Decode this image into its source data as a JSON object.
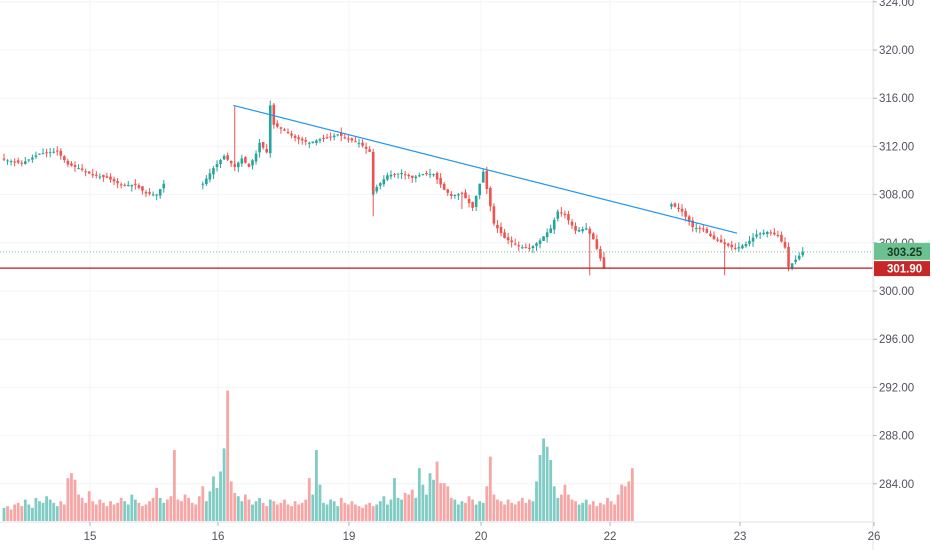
{
  "chart_data": {
    "type": "candlestick",
    "title": "",
    "x_ticks": [
      "15",
      "16",
      "19",
      "20",
      "22",
      "23",
      "26"
    ],
    "y_ticks": [
      "324.00",
      "320.00",
      "316.00",
      "312.00",
      "308.00",
      "304.00",
      "300.00",
      "296.00",
      "292.00",
      "288.00",
      "284.00"
    ],
    "ylim": [
      281,
      324.5
    ],
    "grid": true,
    "colors": {
      "up": "#26a69a",
      "down": "#ef5350",
      "up_volume": "#80cbc4",
      "down_volume": "#f5a6a5",
      "trendline": "#2196f3",
      "support": "#b71c1c"
    },
    "last_price": {
      "label": "303.25",
      "value": 303.25,
      "color": "#6cc190"
    },
    "support_level": {
      "label": "301.90",
      "value": 301.9,
      "color": "#c62828"
    },
    "trendline": {
      "from": {
        "bar": 64.6,
        "price": 315.4
      },
      "to": {
        "bar": 206.5,
        "price": 304.8
      }
    },
    "sessions": [
      {
        "name": "day-1",
        "points": [
          [
            0,
            310.9
          ],
          [
            5,
            310.6
          ],
          [
            10,
            311.4
          ],
          [
            15,
            311.6
          ],
          [
            18,
            310.5
          ],
          [
            21,
            310.2
          ],
          [
            25,
            309.6
          ],
          [
            29,
            309.4
          ],
          [
            33,
            308.8
          ],
          [
            37,
            308.8
          ],
          [
            40,
            308.1
          ],
          [
            43,
            308.0
          ],
          [
            45,
            308.9
          ]
        ]
      },
      {
        "name": "day-2",
        "points": [
          [
            0,
            308.9
          ],
          [
            3,
            310.2
          ],
          [
            6,
            311.2
          ],
          [
            9,
            310.3
          ],
          [
            11,
            311.0
          ],
          [
            13,
            310.3
          ],
          [
            15,
            311.4
          ],
          [
            16,
            312.3
          ],
          [
            18,
            311.5
          ],
          [
            19,
            315.4
          ],
          [
            20,
            313.8
          ],
          [
            23,
            313.3
          ],
          [
            26,
            312.7
          ],
          [
            30,
            312.3
          ],
          [
            33,
            312.6
          ],
          [
            35,
            312.7
          ],
          [
            38,
            313.0
          ],
          [
            41,
            312.6
          ],
          [
            44,
            312.3
          ],
          [
            48,
            311.3
          ]
        ]
      },
      {
        "name": "day-3",
        "points": [
          [
            0,
            308.3
          ],
          [
            4,
            309.6
          ],
          [
            8,
            309.8
          ],
          [
            11,
            309.4
          ],
          [
            14,
            309.7
          ],
          [
            17,
            309.7
          ],
          [
            20,
            308.4
          ],
          [
            22,
            307.9
          ],
          [
            25,
            308.1
          ],
          [
            28,
            306.9
          ],
          [
            31,
            309.9
          ],
          [
            34,
            305.6
          ],
          [
            37,
            304.4
          ],
          [
            41,
            303.7
          ],
          [
            44,
            303.5
          ],
          [
            47,
            304.2
          ],
          [
            50,
            305.2
          ],
          [
            52,
            306.6
          ],
          [
            54,
            306.3
          ],
          [
            57,
            305.0
          ],
          [
            60,
            305.2
          ],
          [
            62,
            304.3
          ],
          [
            64,
            302.7
          ],
          [
            65,
            301.9
          ]
        ]
      },
      {
        "name": "day-4",
        "points": [
          [
            0,
            307.2
          ],
          [
            3,
            306.6
          ],
          [
            6,
            305.3
          ],
          [
            9,
            305.1
          ],
          [
            12,
            304.3
          ],
          [
            15,
            303.9
          ],
          [
            18,
            303.5
          ],
          [
            21,
            303.9
          ],
          [
            24,
            304.7
          ],
          [
            27,
            304.9
          ],
          [
            30,
            304.6
          ],
          [
            32,
            303.6
          ],
          [
            33,
            302.0
          ],
          [
            35,
            302.6
          ],
          [
            37,
            303.25
          ]
        ]
      }
    ],
    "volume_series": [
      0.8,
      0.9,
      0.7,
      1.0,
      1.1,
      0.9,
      1.3,
      1.0,
      0.8,
      1.4,
      1.2,
      1.1,
      1.5,
      1.3,
      1.1,
      0.9,
      1.2,
      1.0,
      2.6,
      2.9,
      2.5,
      1.6,
      1.4,
      1.1,
      1.8,
      1.2,
      1.0,
      1.3,
      1.1,
      0.9,
      1.2,
      1.0,
      1.1,
      1.4,
      1.2,
      1.0,
      1.6,
      1.3,
      1.1,
      0.9,
      1.0,
      1.2,
      1.4,
      2.0,
      1.4,
      1.1,
      1.3,
      1.5,
      4.3,
      1.3,
      1.2,
      1.6,
      1.4,
      1.1,
      1.0,
      1.5,
      2.1,
      1.2,
      1.8,
      2.7,
      2.0,
      3.0,
      4.4,
      7.9,
      2.4,
      1.7,
      1.5,
      1.2,
      1.6,
      1.3,
      1.0,
      1.2,
      1.4,
      1.1,
      0.9,
      1.3,
      1.2,
      1.0,
      1.1,
      1.3,
      1.0,
      0.9,
      1.2,
      1.0,
      1.1,
      1.3,
      2.6,
      1.6,
      4.3,
      2.2,
      1.1,
      1.0,
      1.3,
      1.2,
      0.9,
      1.4,
      1.1,
      1.0,
      1.2,
      1.0,
      0.9,
      0.8,
      1.0,
      1.1,
      0.9,
      1.0,
      1.2,
      1.5,
      1.0,
      1.3,
      2.6,
      1.4,
      1.3,
      1.7,
      1.6,
      1.9,
      1.4,
      3.2,
      2.2,
      1.6,
      2.9,
      2.5,
      3.6,
      2.3,
      2.3,
      2.1,
      1.4,
      1.3,
      1.0,
      1.2,
      1.1,
      1.5,
      1.3,
      1.0,
      1.2,
      1.1,
      2.1,
      3.9,
      1.6,
      1.3,
      1.2,
      1.0,
      1.3,
      1.1,
      1.0,
      1.2,
      1.4,
      1.1,
      1.3,
      1.2,
      2.4,
      4.0,
      5.0,
      4.5,
      3.7,
      2.1,
      1.4,
      1.6,
      2.2,
      1.6,
      1.3,
      1.2,
      1.0,
      1.1,
      1.3,
      1.0,
      1.2,
      0.9,
      1.1,
      1.0,
      1.4,
      1.2,
      1.0,
      1.6,
      2.2,
      2.1,
      2.4,
      3.2
    ]
  }
}
